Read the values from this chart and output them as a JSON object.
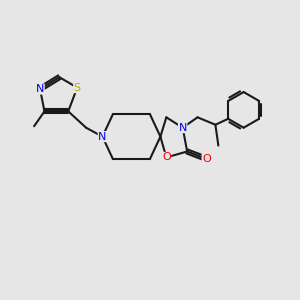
{
  "background_color": "#e6e6e6",
  "line_color": "#1a1a1a",
  "bond_width": 1.5,
  "figsize": [
    3.0,
    3.0
  ],
  "dpi": 100,
  "atom_colors": {
    "N": "#0000ee",
    "O": "#ee0000",
    "S": "#bbaa00",
    "C": "#1a1a1a"
  },
  "font_size": 8.0,
  "xlim": [
    0,
    10
  ],
  "ylim": [
    0,
    10
  ]
}
